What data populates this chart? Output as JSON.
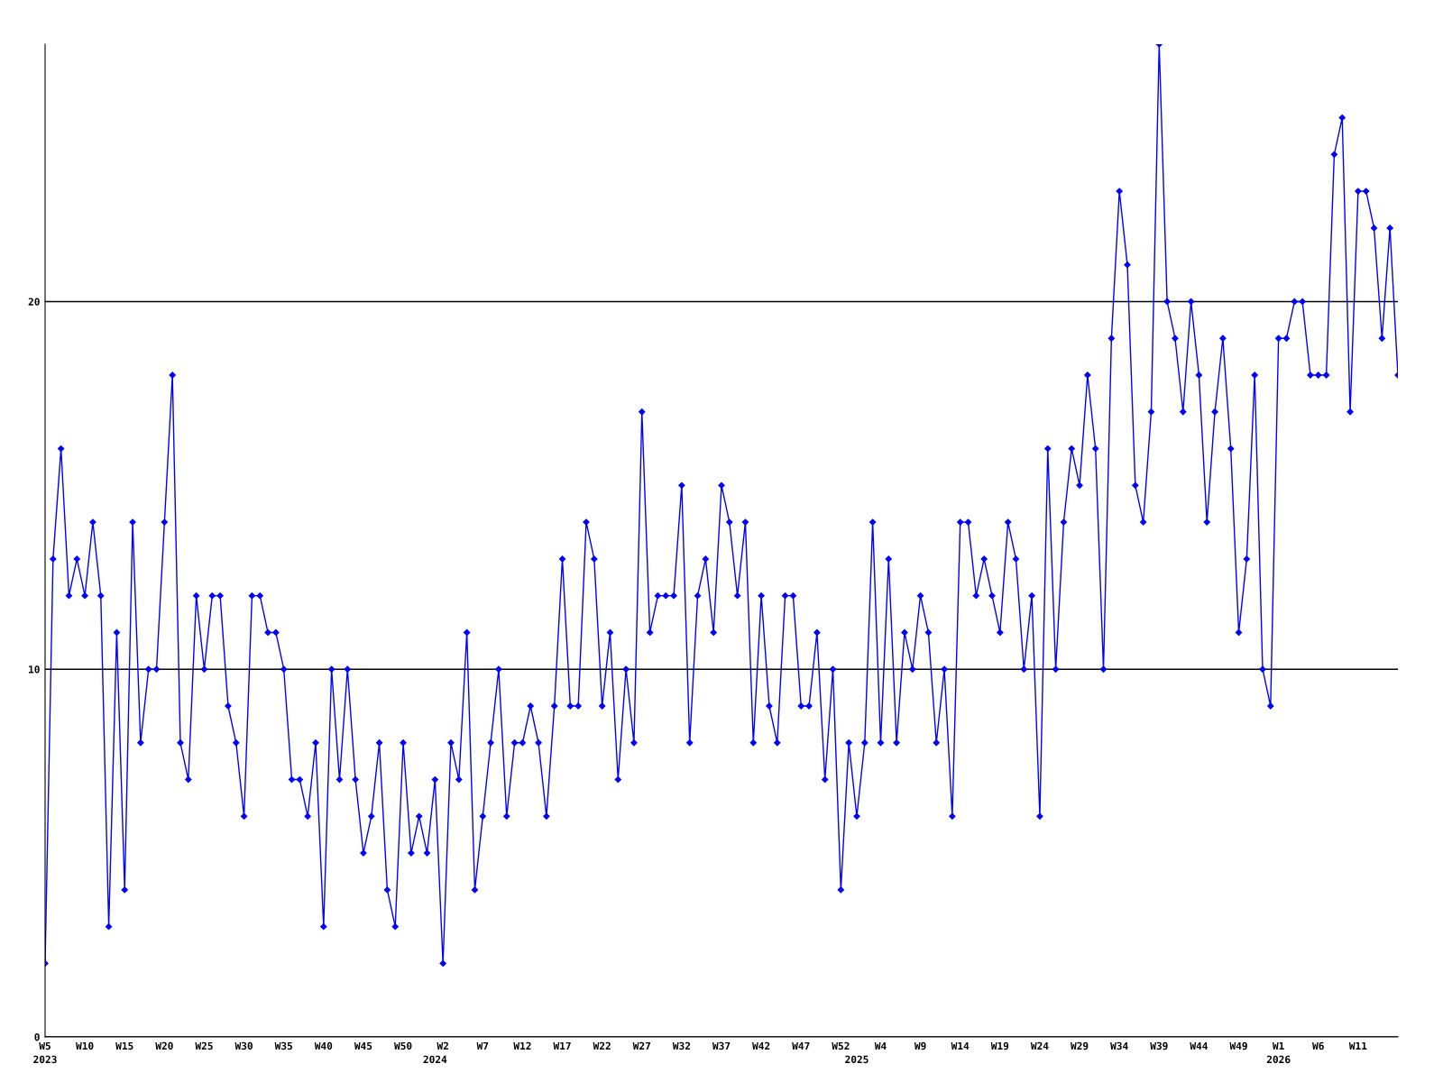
{
  "chart_data": {
    "type": "line",
    "categories": [
      "W5\n2023",
      null,
      null,
      null,
      null,
      "W10",
      null,
      null,
      null,
      null,
      "W15",
      null,
      null,
      null,
      null,
      "W20",
      null,
      null,
      null,
      null,
      "W25",
      null,
      null,
      null,
      null,
      "W30",
      null,
      null,
      null,
      null,
      "W35",
      null,
      null,
      null,
      null,
      "W40",
      null,
      null,
      null,
      null,
      "W45",
      null,
      null,
      null,
      null,
      "W50",
      null,
      null,
      null,
      "\n2024",
      "W2",
      null,
      null,
      null,
      null,
      "W7",
      null,
      null,
      null,
      null,
      "W12",
      null,
      null,
      null,
      null,
      "W17",
      null,
      null,
      null,
      null,
      "W22",
      null,
      null,
      null,
      null,
      "W27",
      null,
      null,
      null,
      null,
      "W32",
      null,
      null,
      null,
      null,
      "W37",
      null,
      null,
      null,
      null,
      "W42",
      null,
      null,
      null,
      null,
      "W47",
      null,
      null,
      null,
      null,
      "W52",
      null,
      "\n2025",
      null,
      null,
      "W4",
      null,
      null,
      null,
      null,
      "W9",
      null,
      null,
      null,
      null,
      "W14",
      null,
      null,
      null,
      null,
      "W19",
      null,
      null,
      null,
      null,
      "W24",
      null,
      null,
      null,
      null,
      "W29",
      null,
      null,
      null,
      null,
      "W34",
      null,
      null,
      null,
      null,
      "W39",
      null,
      null,
      null,
      null,
      "W44",
      null,
      null,
      null,
      null,
      "W49",
      null,
      null,
      null,
      null,
      "W1\n2026",
      null,
      null,
      null,
      null,
      "W6",
      null,
      null,
      null,
      null,
      "W11",
      null,
      null,
      null,
      null,
      null
    ],
    "series": [
      {
        "color": "#0000ff",
        "values": [
          2,
          13,
          16,
          12,
          13,
          12,
          14,
          12,
          3,
          11,
          4,
          14,
          8,
          10,
          10,
          14,
          18,
          8,
          7,
          12,
          10,
          12,
          12,
          9,
          8,
          6,
          12,
          12,
          11,
          11,
          10,
          7,
          7,
          6,
          8,
          3,
          10,
          7,
          10,
          7,
          5,
          6,
          8,
          4,
          3,
          8,
          5,
          6,
          5,
          7,
          2,
          8,
          7,
          11,
          4,
          6,
          8,
          10,
          6,
          8,
          8,
          9,
          8,
          6,
          9,
          13,
          9,
          9,
          14,
          13,
          9,
          11,
          7,
          10,
          8,
          17,
          11,
          12,
          12,
          12,
          15,
          8,
          12,
          13,
          11,
          15,
          14,
          12,
          14,
          8,
          12,
          9,
          8,
          12,
          12,
          9,
          9,
          11,
          7,
          10,
          4,
          8,
          6,
          8,
          14,
          8,
          13,
          8,
          11,
          10,
          12,
          11,
          8,
          10,
          6,
          14,
          14,
          12,
          13,
          12,
          11,
          14,
          13,
          10,
          12,
          6,
          16,
          10,
          14,
          16,
          15,
          18,
          16,
          10,
          19,
          23,
          21,
          15,
          14,
          17,
          27,
          20,
          19,
          17,
          20,
          18,
          14,
          17,
          19,
          16,
          11,
          13,
          18,
          10,
          9,
          19,
          19,
          20,
          20,
          18,
          18,
          18,
          24,
          25,
          17,
          23,
          23,
          22,
          19,
          22,
          18
        ]
      }
    ],
    "ylim": [
      0,
      27
    ],
    "yticks": [
      0,
      10,
      20
    ],
    "grid": "y",
    "marker": "diamond",
    "line_style": "solid"
  }
}
